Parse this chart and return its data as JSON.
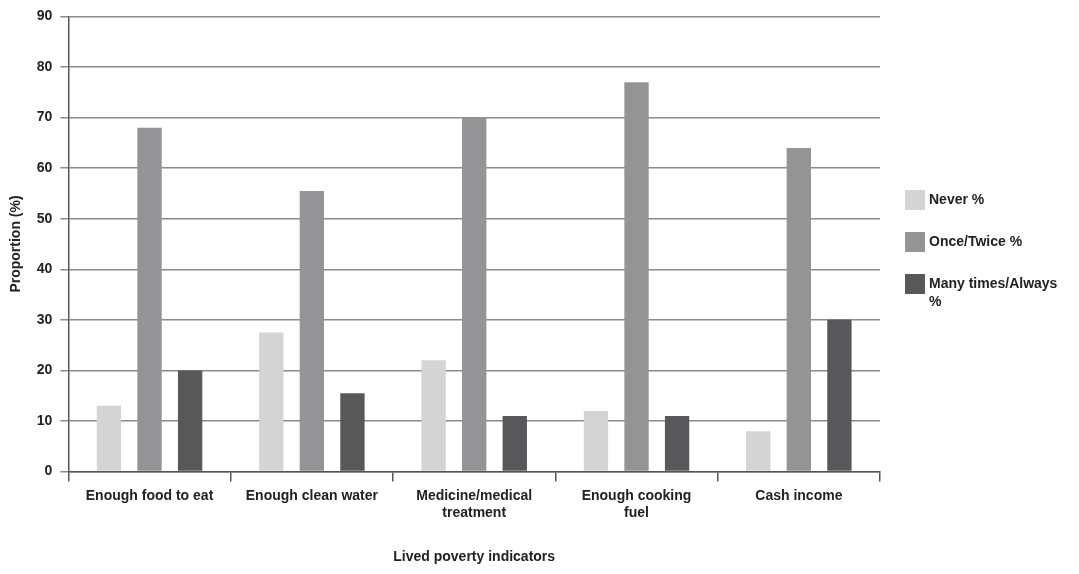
{
  "chart_data": {
    "type": "bar",
    "xlabel": "Lived poverty indicators",
    "ylabel": "Proportion (%)",
    "categories": [
      "Enough food to eat",
      "Enough clean water",
      "Medicine/medical treatment",
      "Enough cooking fuel",
      "Cash income"
    ],
    "series": [
      {
        "name": "Never %",
        "color": "#d4d4d5",
        "values": [
          13,
          27.5,
          22,
          12,
          8
        ]
      },
      {
        "name": "Once/Twice %",
        "color": "#949496",
        "values": [
          68,
          55.5,
          70,
          77,
          64
        ]
      },
      {
        "name": "Many times/Always %",
        "color": "#58585a",
        "values": [
          20,
          15.5,
          11,
          11,
          30
        ]
      }
    ],
    "ylim": [
      0,
      90
    ],
    "yticks": [
      0,
      10,
      20,
      30,
      40,
      50,
      60,
      70,
      80,
      90
    ],
    "grid": "y",
    "legend": "right"
  }
}
